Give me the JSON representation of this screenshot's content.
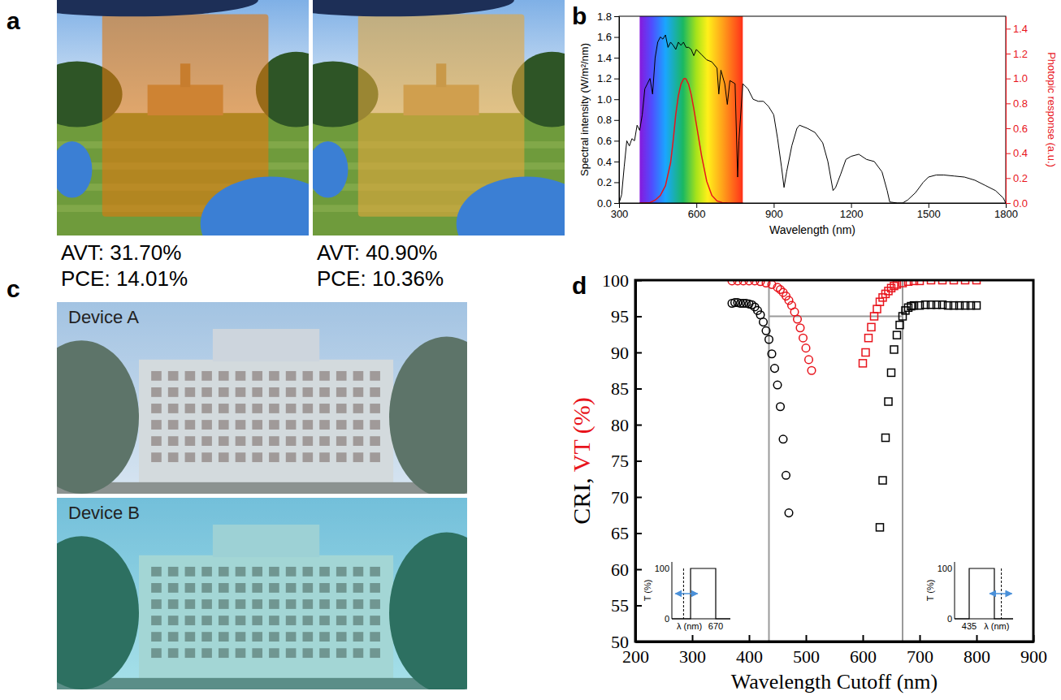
{
  "chart_data": [
    {
      "type": "image",
      "panel": "a",
      "images": [
        {
          "color": "#e0780f",
          "captions": [
            "AVT: 31.70%",
            "PCE: 14.01%"
          ]
        },
        {
          "color": "#e3a73c",
          "captions": [
            "AVT: 40.90%",
            "PCE: 10.36%"
          ]
        }
      ]
    },
    {
      "type": "line",
      "panel": "b",
      "xlabel": "Wavelength (nm)",
      "ylabel": "Spectral intensity (W/m²/nm)",
      "y2label": "Photopic response (a.u.)",
      "xlim": [
        300,
        1800
      ],
      "xticks": [
        300,
        600,
        900,
        1200,
        1500,
        1800
      ],
      "ylim": [
        0,
        1.8
      ],
      "yticks": [
        {
          "value": 0,
          "label": "0.0"
        },
        0.2,
        0.4,
        0.6,
        0.8,
        {
          "value": 1,
          "label": "1.0"
        },
        1.2,
        1.4,
        1.6,
        1.8
      ],
      "y2lim": [
        0,
        1.5
      ],
      "y2ticks": [
        {
          "value": 0,
          "label": "0.0"
        },
        0.2,
        0.4,
        0.6,
        0.8,
        {
          "value": 1,
          "label": "1.0"
        },
        1.2,
        1.4
      ],
      "visible_range": [
        380,
        780
      ],
      "series": [
        {
          "color": "#000000",
          "x": [
            300,
            310,
            320,
            330,
            340,
            350,
            360,
            370,
            380,
            390,
            400,
            410,
            420,
            430,
            440,
            450,
            460,
            470,
            480,
            490,
            500,
            510,
            520,
            530,
            540,
            550,
            560,
            570,
            580,
            590,
            600,
            620,
            640,
            660,
            680,
            687,
            695,
            710,
            720,
            730,
            750,
            760,
            765,
            780,
            800,
            820,
            840,
            860,
            880,
            900,
            915,
            930,
            940,
            950,
            970,
            990,
            1000,
            1030,
            1060,
            1090,
            1110,
            1130,
            1140,
            1160,
            1180,
            1200,
            1230,
            1260,
            1290,
            1320,
            1340,
            1350,
            1380,
            1400,
            1420,
            1450,
            1480,
            1500,
            1530,
            1560,
            1600,
            1640,
            1680,
            1720,
            1760,
            1790,
            1800
          ],
          "values": [
            0.0,
            0.08,
            0.35,
            0.6,
            0.55,
            0.62,
            0.6,
            0.75,
            0.7,
            0.85,
            1.1,
            1.15,
            1.2,
            1.05,
            1.4,
            1.55,
            1.6,
            1.58,
            1.62,
            1.5,
            1.55,
            1.52,
            1.48,
            1.55,
            1.52,
            1.55,
            1.5,
            1.5,
            1.48,
            1.42,
            1.48,
            1.43,
            1.38,
            1.36,
            1.3,
            1.05,
            1.28,
            1.15,
            0.95,
            1.18,
            1.15,
            0.25,
            0.6,
            1.15,
            1.1,
            1.0,
            0.98,
            0.98,
            0.93,
            0.85,
            0.62,
            0.35,
            0.15,
            0.3,
            0.55,
            0.72,
            0.75,
            0.72,
            0.68,
            0.58,
            0.4,
            0.12,
            0.15,
            0.28,
            0.42,
            0.45,
            0.47,
            0.42,
            0.4,
            0.3,
            0.12,
            0.01,
            0.0,
            0.0,
            0.03,
            0.1,
            0.2,
            0.25,
            0.27,
            0.27,
            0.26,
            0.25,
            0.22,
            0.17,
            0.12,
            0.05,
            0.0
          ]
        },
        {
          "color": "#e8141c",
          "axis": "y2",
          "x": [
            380,
            400,
            420,
            440,
            460,
            480,
            500,
            510,
            520,
            530,
            540,
            550,
            555,
            560,
            570,
            580,
            590,
            600,
            620,
            640,
            660,
            680,
            700,
            720,
            740,
            780
          ],
          "values": [
            0,
            0.0004,
            0.004,
            0.023,
            0.06,
            0.139,
            0.323,
            0.503,
            0.71,
            0.862,
            0.954,
            0.995,
            1.0,
            0.995,
            0.952,
            0.87,
            0.757,
            0.631,
            0.381,
            0.175,
            0.061,
            0.017,
            0.004,
            0.001,
            0.0003,
            0
          ]
        }
      ]
    },
    {
      "type": "image",
      "panel": "c",
      "images": [
        {
          "color": "#c8dcef",
          "label": "Device A"
        },
        {
          "color": "#3fd2d6",
          "label": "Device B"
        }
      ]
    },
    {
      "type": "scatter",
      "panel": "d",
      "xlabel": "Wavelength Cutoff (nm)",
      "ylabel": [
        {
          "text": "CRI, ",
          "color": "#000000"
        },
        {
          "text": "VT (%)",
          "color": "#e8141c"
        }
      ],
      "xlim": [
        200,
        900
      ],
      "xticks": [
        200,
        300,
        400,
        500,
        600,
        700,
        800,
        900
      ],
      "ylim": [
        50,
        100
      ],
      "yticks": [
        50,
        55,
        60,
        65,
        70,
        75,
        80,
        85,
        90,
        95,
        100
      ],
      "reference_lines": {
        "x": [
          435,
          670
        ],
        "y": [
          95
        ]
      },
      "series": [
        {
          "color": "#000000",
          "marker": "circle",
          "x": [
            370,
            375,
            380,
            385,
            390,
            395,
            400,
            405,
            410,
            415,
            420,
            425,
            430,
            435,
            440,
            445,
            450,
            455,
            460,
            465,
            470
          ],
          "values": [
            96.8,
            96.9,
            96.9,
            96.8,
            96.8,
            96.8,
            96.7,
            96.6,
            96.3,
            95.8,
            95.2,
            94.2,
            93,
            91.8,
            89.8,
            87.8,
            85.5,
            82.5,
            78,
            73,
            67.8
          ]
        },
        {
          "color": "#e8141c",
          "marker": "circle",
          "x": [
            370,
            380,
            390,
            400,
            410,
            420,
            430,
            440,
            450,
            455,
            460,
            465,
            470,
            475,
            480,
            485,
            490,
            495,
            500,
            505,
            510
          ],
          "values": [
            99.9,
            99.9,
            99.9,
            99.9,
            99.9,
            99.8,
            99.6,
            99.4,
            99,
            98.7,
            98.3,
            97.8,
            97.2,
            96.5,
            95.6,
            94.6,
            93.4,
            92,
            90.6,
            89,
            87.5
          ]
        },
        {
          "color": "#000000",
          "marker": "square",
          "x": [
            630,
            635,
            640,
            645,
            650,
            655,
            660,
            665,
            670,
            675,
            680,
            685,
            690,
            700,
            710,
            720,
            730,
            740,
            750,
            760,
            770,
            780,
            790,
            800
          ],
          "values": [
            65.8,
            72.3,
            78.2,
            83.2,
            87.2,
            90.4,
            92.4,
            93.8,
            95,
            95.8,
            96.2,
            96.4,
            96.5,
            96.5,
            96.6,
            96.6,
            96.6,
            96.6,
            96.5,
            96.5,
            96.5,
            96.5,
            96.5,
            96.5
          ]
        },
        {
          "color": "#e8141c",
          "marker": "square",
          "x": [
            600,
            605,
            610,
            615,
            620,
            625,
            630,
            635,
            640,
            645,
            650,
            655,
            660,
            670,
            680,
            690,
            700,
            720,
            740,
            760,
            780,
            800
          ],
          "values": [
            88.5,
            90,
            92,
            93.5,
            95,
            96,
            97,
            97.6,
            98.1,
            98.5,
            98.9,
            99.2,
            99.4,
            99.6,
            99.8,
            99.9,
            99.9,
            100,
            100,
            100,
            100,
            100
          ]
        }
      ],
      "insets": [
        {
          "ylabel": "T (%)",
          "yticks": [
            0,
            100
          ],
          "xlabel": "λ (nm)",
          "xtick": 670
        },
        {
          "ylabel": "T (%)",
          "yticks": [
            0,
            100
          ],
          "xlabel": "λ (nm)",
          "xtick": 435
        }
      ]
    }
  ]
}
